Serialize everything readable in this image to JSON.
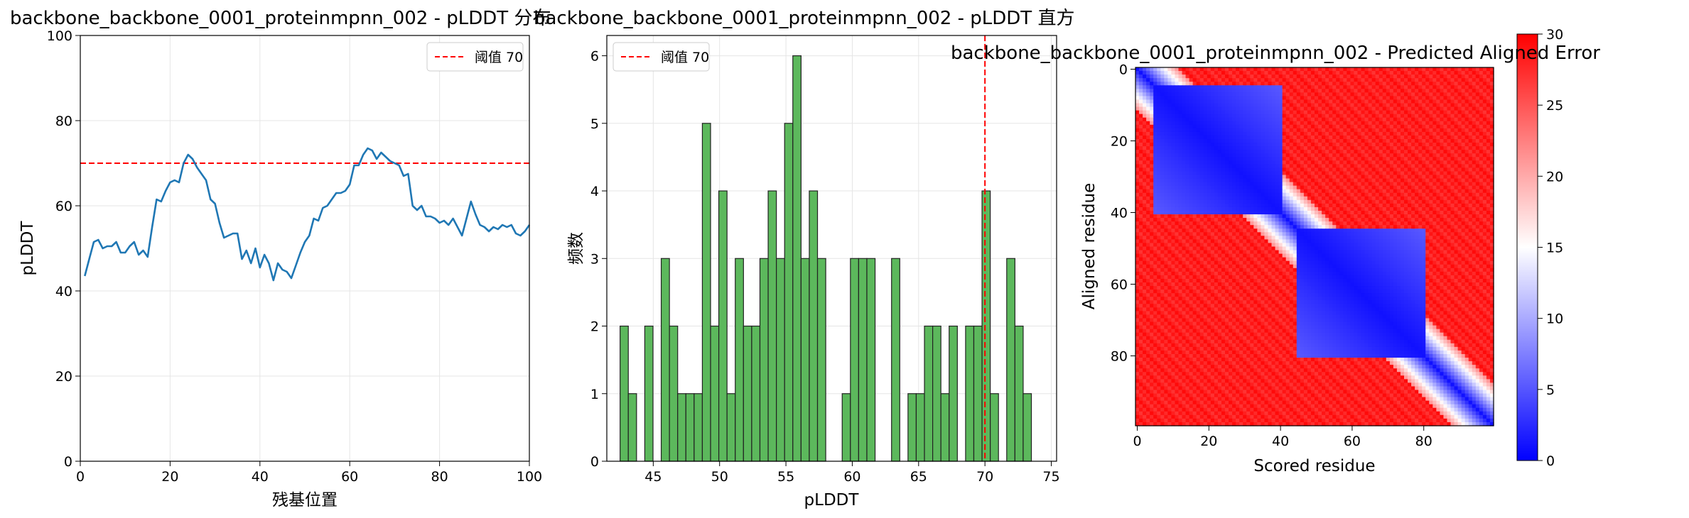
{
  "chart_data": [
    {
      "type": "line",
      "title": "backbone_backbone_0001_proteinmpnn_002 - pLDDT 分布",
      "xlabel": "残基位置",
      "ylabel": "pLDDT",
      "xlim": [
        0,
        100
      ],
      "ylim": [
        0,
        100
      ],
      "xticks": [
        0,
        20,
        40,
        60,
        80,
        100
      ],
      "yticks": [
        0,
        20,
        40,
        60,
        80,
        100
      ],
      "grid": true,
      "legend": {
        "placement": "top-right",
        "entries": [
          "阈值 70"
        ]
      },
      "threshold": {
        "value": 70,
        "label": "阈值 70",
        "color": "#ff0000"
      },
      "series": [
        {
          "color": "#1f77b4",
          "x": [
            1,
            2,
            3,
            4,
            5,
            6,
            7,
            8,
            9,
            10,
            11,
            12,
            13,
            14,
            15,
            16,
            17,
            18,
            19,
            20,
            21,
            22,
            23,
            24,
            25,
            26,
            27,
            28,
            29,
            30,
            31,
            32,
            33,
            34,
            35,
            36,
            37,
            38,
            39,
            40,
            41,
            42,
            43,
            44,
            45,
            46,
            47,
            48,
            49,
            50,
            51,
            52,
            53,
            54,
            55,
            56,
            57,
            58,
            59,
            60,
            61,
            62,
            63,
            64,
            65,
            66,
            67,
            68,
            69,
            70,
            71,
            72,
            73,
            74,
            75,
            76,
            77,
            78,
            79,
            80,
            81,
            82,
            83,
            84,
            85,
            86,
            87,
            88,
            89,
            90,
            91,
            92,
            93,
            94,
            95,
            96,
            97,
            98,
            99,
            100
          ],
          "y": [
            43.5,
            47.5,
            51.5,
            52,
            50,
            50.5,
            50.5,
            51.5,
            49,
            49,
            50.5,
            51.5,
            48.5,
            49.5,
            48,
            55,
            61.5,
            61,
            63.5,
            65.5,
            66,
            65.5,
            70,
            72,
            71,
            69,
            67.5,
            66,
            61.5,
            60.5,
            56,
            52.5,
            53,
            53.5,
            53.5,
            47.5,
            49.5,
            46.5,
            50,
            45.5,
            48.5,
            46.5,
            42.5,
            46.5,
            45,
            44.5,
            43,
            46,
            49,
            51.5,
            53,
            57,
            56.5,
            59.5,
            60,
            61.5,
            63,
            63,
            63.5,
            65,
            69.5,
            69.5,
            72,
            73.5,
            73,
            71,
            72.5,
            71.5,
            70.5,
            70,
            69.5,
            67,
            67.5,
            60,
            59,
            60,
            57.5,
            57.5,
            57,
            56,
            56.5,
            55.5,
            57,
            55,
            53,
            57,
            61,
            58,
            55.5,
            55,
            54,
            55,
            54.5,
            55.5,
            55,
            55.5,
            53.5,
            53,
            54,
            55.5
          ]
        }
      ]
    },
    {
      "type": "bar",
      "title": "backbone_backbone_0001_proteinmpnn_002 - pLDDT 直方",
      "xlabel": "pLDDT",
      "ylabel": "频数",
      "xlim": [
        41.5,
        75.4
      ],
      "ylim": [
        0,
        6.3
      ],
      "xticks": [
        45,
        50,
        55,
        60,
        65,
        70,
        75
      ],
      "yticks": [
        0,
        1,
        2,
        3,
        4,
        5,
        6
      ],
      "grid": true,
      "legend": {
        "placement": "top-left",
        "entries": [
          "阈值 70"
        ]
      },
      "threshold": {
        "value": 70,
        "label": "阈值 70",
        "color": "#ff0000",
        "orientation": "vertical"
      },
      "bar_color": "#5cb85c",
      "bin_start": 42.5,
      "bin_width": 0.62,
      "counts": [
        2,
        1,
        0,
        2,
        0,
        3,
        2,
        1,
        1,
        1,
        5,
        2,
        4,
        1,
        3,
        2,
        2,
        3,
        4,
        3,
        5,
        6,
        3,
        4,
        3,
        0,
        0,
        1,
        3,
        3,
        3,
        0,
        0,
        3,
        0,
        1,
        1,
        2,
        2,
        1,
        2,
        0,
        2,
        2,
        4,
        1,
        0,
        3,
        2,
        1
      ]
    },
    {
      "type": "heatmap",
      "title": "backbone_backbone_0001_proteinmpnn_002 - Predicted Aligned Error",
      "xlabel": "Scored residue",
      "ylabel": "Aligned residue",
      "xticks": [
        0,
        20,
        40,
        60,
        80
      ],
      "yticks": [
        0,
        20,
        40,
        60,
        80
      ],
      "size": 100,
      "colormap": [
        "#0000ff",
        "#ffffff",
        "#ff0000"
      ],
      "colorbar": {
        "min": 0,
        "max": 30,
        "ticks": [
          0,
          5,
          10,
          15,
          20,
          25,
          30
        ]
      },
      "domains": [
        {
          "start": 5,
          "end": 40
        },
        {
          "start": 45,
          "end": 80
        }
      ]
    }
  ]
}
